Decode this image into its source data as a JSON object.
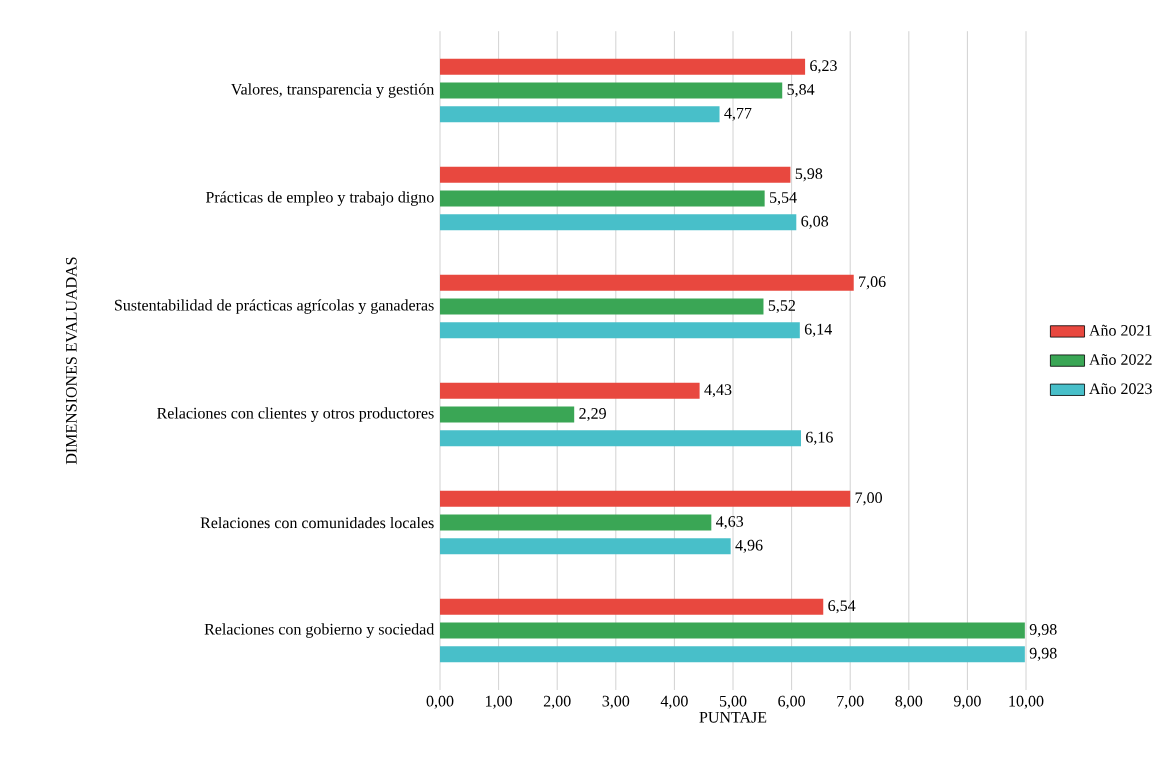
{
  "chart_data": {
    "type": "bar",
    "orientation": "horizontal",
    "categories": [
      "Valores, transparencia y gestión",
      "Prácticas de empleo y trabajo digno",
      "Sustentabilidad de prácticas agrícolas y ganaderas",
      "Relaciones con clientes y otros productores",
      "Relaciones con comunidades locales",
      "Relaciones con gobierno y sociedad"
    ],
    "series": [
      {
        "name": "Año 2021",
        "color": "#e8483f",
        "values": [
          6.23,
          5.98,
          7.06,
          4.43,
          7.0,
          6.54
        ],
        "value_labels": [
          "6,23",
          "5,98",
          "7,06",
          "4,43",
          "7,00",
          "6,54"
        ]
      },
      {
        "name": "Año 2022",
        "color": "#3aa655",
        "values": [
          5.84,
          5.54,
          5.52,
          2.29,
          4.63,
          9.98
        ],
        "value_labels": [
          "5,84",
          "5,54",
          "5,52",
          "2,29",
          "4,63",
          "9,98"
        ]
      },
      {
        "name": "Año 2023",
        "color": "#48bfc9",
        "values": [
          4.77,
          6.08,
          6.14,
          6.16,
          4.96,
          9.98
        ],
        "value_labels": [
          "4,77",
          "6,08",
          "6,14",
          "6,16",
          "4,96",
          "9,98"
        ]
      }
    ],
    "xlabel": "PUNTAJE",
    "ylabel": "DIMENSIONES EVALUADAS",
    "xlim": [
      0,
      10
    ],
    "xticks": [
      {
        "value": 0,
        "label": "0,00"
      },
      {
        "value": 1,
        "label": "1,00"
      },
      {
        "value": 2,
        "label": "2,00"
      },
      {
        "value": 3,
        "label": "3,00"
      },
      {
        "value": 4,
        "label": "4,00"
      },
      {
        "value": 5,
        "label": "5,00"
      },
      {
        "value": 6,
        "label": "6,00"
      },
      {
        "value": 7,
        "label": "7,00"
      },
      {
        "value": 8,
        "label": "8,00"
      },
      {
        "value": 9,
        "label": "9,00"
      },
      {
        "value": 10,
        "label": "10,00"
      }
    ],
    "grid": "x",
    "legend": "right"
  }
}
